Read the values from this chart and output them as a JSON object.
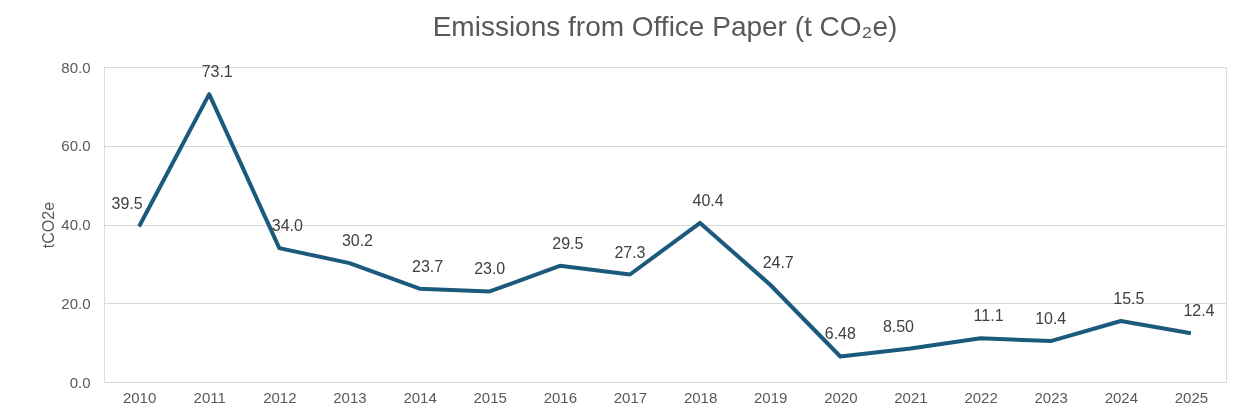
{
  "chart_data": {
    "type": "line",
    "title": "Emissions from Office Paper (t CO₂e)",
    "ylabel": "tCO2e",
    "categories": [
      "2010",
      "2011",
      "2012",
      "2013",
      "2014",
      "2015",
      "2016",
      "2017",
      "2018",
      "2019",
      "2020",
      "2021",
      "2022",
      "2023",
      "2024",
      "2025"
    ],
    "series": [
      {
        "color": "#1b5a7c",
        "values": [
          39.5,
          73.1,
          34.0,
          30.2,
          23.7,
          23.0,
          29.5,
          27.3,
          40.4,
          24.7,
          6.48,
          8.5,
          11.1,
          10.4,
          15.5,
          12.4
        ],
        "value_labels": [
          "39.5",
          "73.1",
          "34.0",
          "30.2",
          "23.7",
          "23.0",
          "29.5",
          "27.3",
          "40.4",
          "24.7",
          "6.48",
          "8.50",
          "11.1",
          "10.4",
          "15.5",
          "12.4"
        ]
      }
    ],
    "ylim": [
      0,
      80
    ],
    "yticks": [
      {
        "value": 0,
        "label": "0.0"
      },
      {
        "value": 20,
        "label": "20.0"
      },
      {
        "value": 40,
        "label": "40.0"
      },
      {
        "value": 60,
        "label": "60.0"
      },
      {
        "value": 80,
        "label": "80.0"
      }
    ],
    "grid": "y",
    "legend": false,
    "marker": "none",
    "line_style": "solid"
  }
}
